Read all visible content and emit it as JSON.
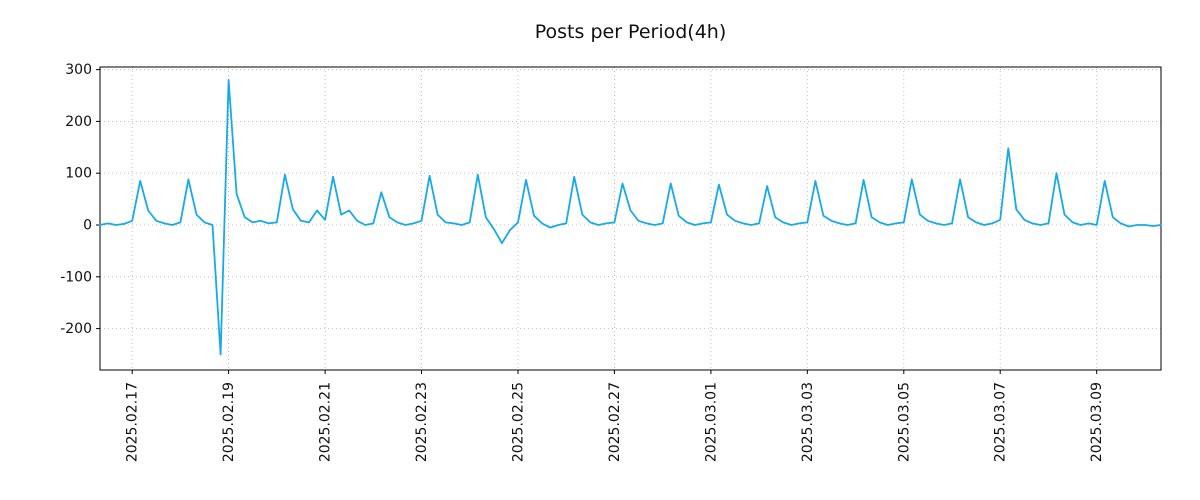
{
  "chart_data": {
    "type": "line",
    "title": "Posts per Period(4h)",
    "series_name": "posts",
    "line_color": "#17a9e8",
    "grid": "dotted",
    "legend": "none",
    "x_start": "2025-02-16 08:00",
    "interval_hours": 4,
    "ylim": [
      -280,
      305
    ],
    "y_ticks": [
      300,
      200,
      100,
      0,
      -100,
      -200
    ],
    "x_ticks": [
      {
        "index": 4,
        "label": "2025.02.17"
      },
      {
        "index": 16,
        "label": "2025.02.19"
      },
      {
        "index": 28,
        "label": "2025.02.21"
      },
      {
        "index": 40,
        "label": "2025.02.23"
      },
      {
        "index": 52,
        "label": "2025.02.25"
      },
      {
        "index": 64,
        "label": "2025.02.27"
      },
      {
        "index": 76,
        "label": "2025.03.01"
      },
      {
        "index": 88,
        "label": "2025.03.03"
      },
      {
        "index": 100,
        "label": "2025.03.05"
      },
      {
        "index": 112,
        "label": "2025.03.07"
      },
      {
        "index": 124,
        "label": "2025.03.09"
      }
    ],
    "values": [
      0,
      3,
      0,
      2,
      8,
      85,
      28,
      8,
      3,
      0,
      5,
      88,
      20,
      5,
      0,
      -250,
      280,
      60,
      15,
      5,
      8,
      3,
      5,
      97,
      30,
      8,
      5,
      28,
      10,
      93,
      20,
      28,
      8,
      0,
      3,
      63,
      15,
      5,
      0,
      3,
      8,
      95,
      20,
      5,
      3,
      0,
      5,
      97,
      15,
      -8,
      -35,
      -10,
      5,
      87,
      18,
      3,
      -5,
      0,
      3,
      93,
      20,
      5,
      0,
      3,
      5,
      80,
      28,
      8,
      3,
      0,
      3,
      80,
      18,
      5,
      0,
      3,
      5,
      78,
      20,
      8,
      3,
      0,
      3,
      75,
      15,
      5,
      0,
      3,
      5,
      85,
      18,
      8,
      3,
      0,
      3,
      87,
      15,
      5,
      0,
      3,
      5,
      88,
      20,
      8,
      3,
      0,
      3,
      88,
      15,
      5,
      0,
      3,
      10,
      148,
      30,
      10,
      3,
      0,
      3,
      100,
      20,
      5,
      0,
      3,
      0,
      85,
      15,
      3,
      -3,
      0,
      0,
      -2,
      0
    ]
  },
  "colors": {
    "axis": "#000000",
    "grid": "#b3b3b3",
    "text": "#111111",
    "background": "#ffffff"
  }
}
